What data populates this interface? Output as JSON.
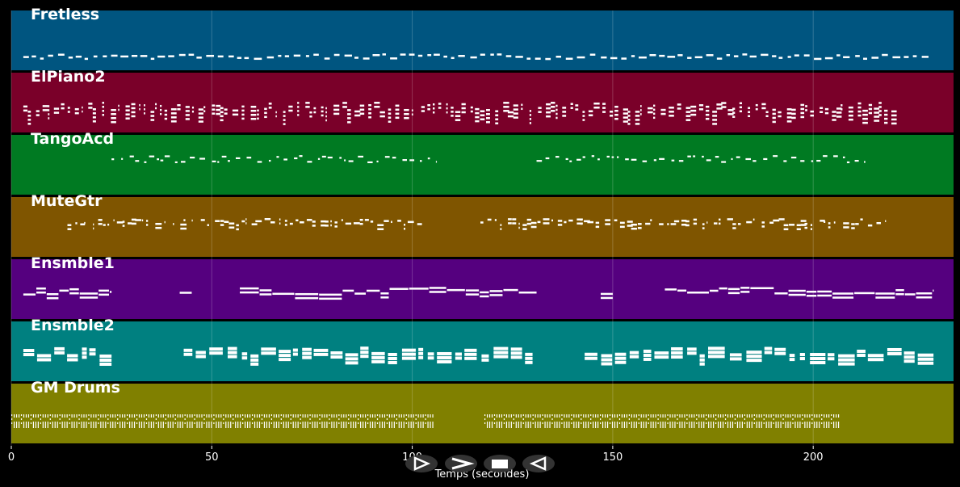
{
  "chart_data": {
    "type": "piano-roll",
    "xlabel": "Temps (secondes)",
    "xlim": [
      0,
      235
    ],
    "x_ticks": [
      0,
      50,
      100,
      150,
      200
    ],
    "grid": true,
    "tracks": [
      {
        "name": "Fretless",
        "color": "#005580",
        "segments": [
          {
            "start": 3,
            "end": 229,
            "style": "bass"
          }
        ]
      },
      {
        "name": "ElPiano2",
        "color": "#7a0029",
        "segments": [
          {
            "start": 3,
            "end": 221,
            "style": "chords"
          }
        ]
      },
      {
        "name": "TangoAcd",
        "color": "#007a22",
        "segments": [
          {
            "start": 25,
            "end": 106,
            "style": "melody"
          },
          {
            "start": 131,
            "end": 213,
            "style": "melody"
          }
        ]
      },
      {
        "name": "MuteGtr",
        "color": "#7f5500",
        "segments": [
          {
            "start": 14,
            "end": 103,
            "style": "rhythm"
          },
          {
            "start": 117,
            "end": 218,
            "style": "rhythm"
          }
        ]
      },
      {
        "name": "Ensmble1",
        "color": "#55007f",
        "segments": [
          {
            "start": 3,
            "end": 25,
            "style": "legato"
          },
          {
            "start": 42,
            "end": 45,
            "style": "legato"
          },
          {
            "start": 57,
            "end": 131,
            "style": "legato"
          },
          {
            "start": 147,
            "end": 150,
            "style": "legato"
          },
          {
            "start": 163,
            "end": 230,
            "style": "legato"
          }
        ]
      },
      {
        "name": "Ensmble2",
        "color": "#008080",
        "segments": [
          {
            "start": 3,
            "end": 25,
            "style": "pad"
          },
          {
            "start": 43,
            "end": 130,
            "style": "pad"
          },
          {
            "start": 143,
            "end": 230,
            "style": "pad"
          }
        ]
      },
      {
        "name": "GM Drums",
        "color": "#808000",
        "segments": [
          {
            "start": 0,
            "end": 104,
            "style": "drums"
          },
          {
            "start": 118,
            "end": 206,
            "style": "drums"
          }
        ]
      }
    ]
  },
  "controls": {
    "play_icon": "play-icon",
    "forward_icon": "fast-forward-icon",
    "stop_icon": "stop-icon",
    "rewind_icon": "rewind-icon"
  }
}
